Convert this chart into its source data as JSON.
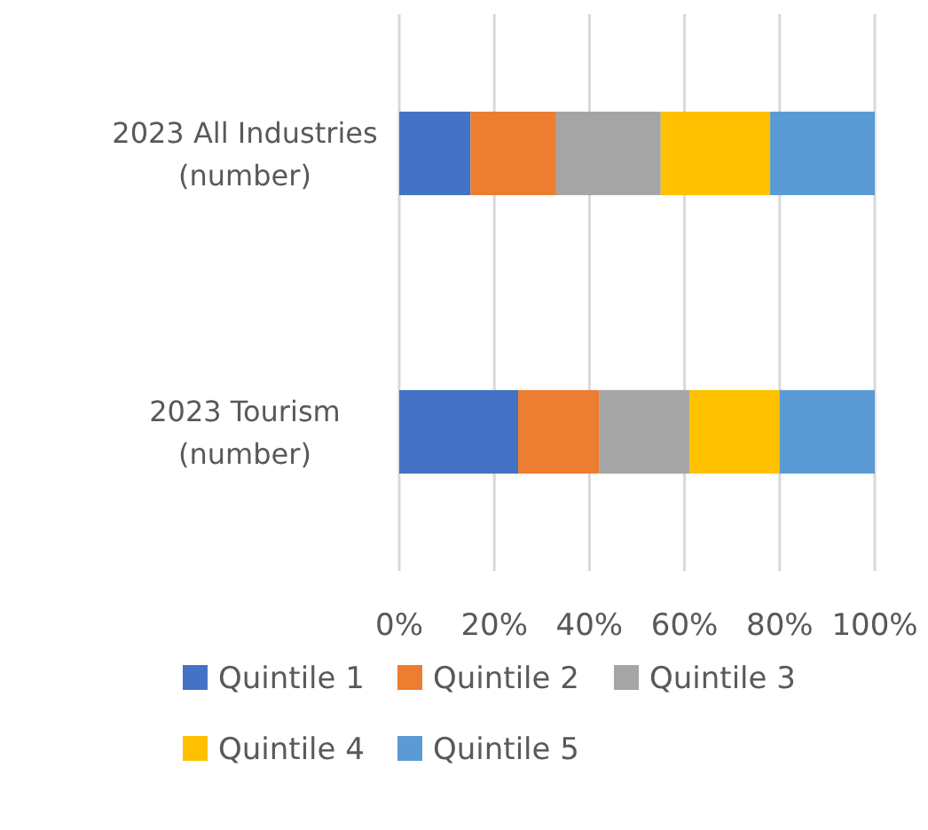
{
  "chart_data": {
    "type": "bar",
    "orientation": "horizontal",
    "stacked": true,
    "categories": [
      "2023 All Industries (number)",
      "2023 Tourism (number)"
    ],
    "series": [
      {
        "name": "Quintile 1",
        "color": "#4472c4",
        "values": [
          15,
          25
        ]
      },
      {
        "name": "Quintile 2",
        "color": "#ed7d31",
        "values": [
          18,
          17
        ]
      },
      {
        "name": "Quintile 3",
        "color": "#a5a5a5",
        "values": [
          22,
          19
        ]
      },
      {
        "name": "Quintile 4",
        "color": "#ffc000",
        "values": [
          23,
          19
        ]
      },
      {
        "name": "Quintile 5",
        "color": "#5b9bd5",
        "values": [
          22,
          20
        ]
      }
    ],
    "xlim": [
      0,
      100
    ],
    "xticks": [
      {
        "value": 0,
        "label": "0%"
      },
      {
        "value": 20,
        "label": "20%"
      },
      {
        "value": 40,
        "label": "40%"
      },
      {
        "value": 60,
        "label": "60%"
      },
      {
        "value": 80,
        "label": "80%"
      },
      {
        "value": 100,
        "label": "100%"
      }
    ],
    "grid": "x",
    "legend": "bottom"
  }
}
